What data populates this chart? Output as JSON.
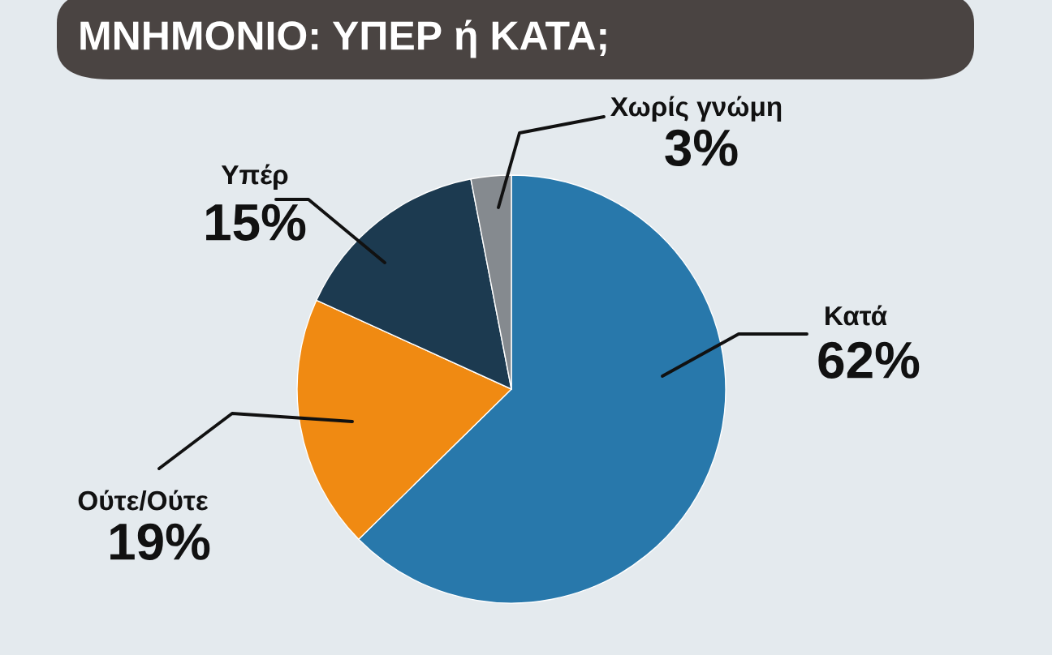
{
  "chart_data": {
    "type": "pie",
    "title": "ΜΝΗΜΟΝΙΟ: ΥΠΕΡ ή ΚΑΤΑ;",
    "categories": [
      "Κατά",
      "Ούτε/Ούτε",
      "Υπέρ",
      "Χωρίς γνώμη"
    ],
    "values": [
      62,
      19,
      15,
      3
    ],
    "colors": [
      "#2878ab",
      "#f08a12",
      "#1c3a50",
      "#858a8f"
    ],
    "value_labels": [
      "62%",
      "19%",
      "15%",
      "3%"
    ]
  }
}
